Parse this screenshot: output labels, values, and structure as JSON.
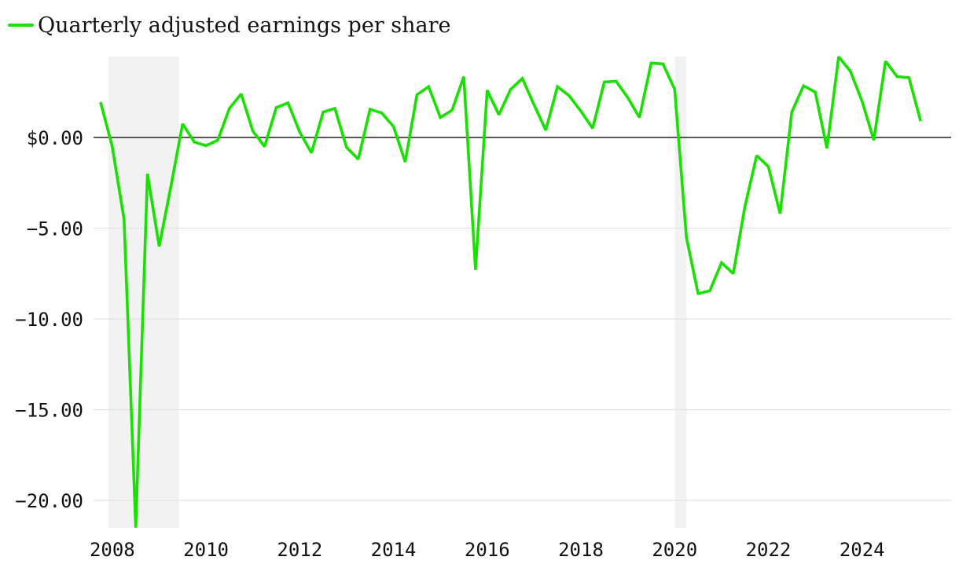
{
  "chart_data": {
    "type": "line",
    "title": "",
    "xlabel": "",
    "ylabel": "",
    "legend": {
      "position": "top-left",
      "entries": [
        "Quarterly adjusted earnings per share"
      ]
    },
    "colors": {
      "series": "#18e000",
      "zero_line": "#222222",
      "grid": "#e2e2e2",
      "shading": "#f2f2f2"
    },
    "grid": true,
    "xlim": [
      2007.6,
      2025.9
    ],
    "ylim": [
      -21.6,
      4.5
    ],
    "x_ticks": [
      2008,
      2010,
      2012,
      2014,
      2016,
      2018,
      2020,
      2022,
      2024
    ],
    "x_tick_labels": [
      "2008",
      "2010",
      "2012",
      "2014",
      "2016",
      "2018",
      "2020",
      "2022",
      "2024"
    ],
    "y_ticks": [
      0,
      -5,
      -10,
      -15,
      -20
    ],
    "y_tick_labels": [
      "$0.00",
      "−5.00",
      "−10.00",
      "−15.00",
      "−20.00"
    ],
    "shaded_periods": [
      {
        "start": 2007.92,
        "end": 2009.42
      },
      {
        "start": 2020.0,
        "end": 2020.25
      }
    ],
    "series": [
      {
        "name": "Quarterly adjusted earnings per share",
        "x": [
          2007.75,
          2008.0,
          2008.25,
          2008.5,
          2008.75,
          2009.0,
          2009.25,
          2009.5,
          2009.75,
          2010.0,
          2010.25,
          2010.5,
          2010.75,
          2011.0,
          2011.25,
          2011.5,
          2011.75,
          2012.0,
          2012.25,
          2012.5,
          2012.75,
          2013.0,
          2013.25,
          2013.5,
          2013.75,
          2014.0,
          2014.25,
          2014.5,
          2014.75,
          2015.0,
          2015.25,
          2015.5,
          2015.75,
          2016.0,
          2016.25,
          2016.5,
          2016.75,
          2017.0,
          2017.25,
          2017.5,
          2017.75,
          2018.0,
          2018.25,
          2018.5,
          2018.75,
          2019.0,
          2019.25,
          2019.5,
          2019.75,
          2020.0,
          2020.25,
          2020.5,
          2020.75,
          2021.0,
          2021.25,
          2021.5,
          2021.75,
          2022.0,
          2022.25,
          2022.5,
          2022.75,
          2023.0,
          2023.25,
          2023.5,
          2023.75,
          2024.0,
          2024.25,
          2024.5,
          2024.75,
          2025.0,
          2025.25
        ],
        "values": [
          1.95,
          -0.5,
          -4.5,
          -21.5,
          -2.0,
          -6.0,
          -2.7,
          0.75,
          -0.25,
          -0.45,
          -0.15,
          1.6,
          2.4,
          0.35,
          -0.5,
          1.65,
          1.9,
          0.3,
          -0.85,
          1.4,
          1.6,
          -0.55,
          -1.2,
          1.55,
          1.35,
          0.6,
          -1.35,
          2.35,
          2.8,
          1.1,
          1.5,
          3.35,
          -7.3,
          2.6,
          1.25,
          2.65,
          3.25,
          1.8,
          0.4,
          2.8,
          2.3,
          1.45,
          0.5,
          3.05,
          3.1,
          2.2,
          1.1,
          4.1,
          4.05,
          2.65,
          -5.5,
          -8.6,
          -8.45,
          -6.9,
          -7.5,
          -3.8,
          -1.0,
          -1.6,
          -4.2,
          1.4,
          2.85,
          2.5,
          -0.6,
          4.45,
          3.65,
          2.0,
          -0.15,
          4.2,
          3.35,
          3.3,
          0.9
        ]
      }
    ]
  }
}
